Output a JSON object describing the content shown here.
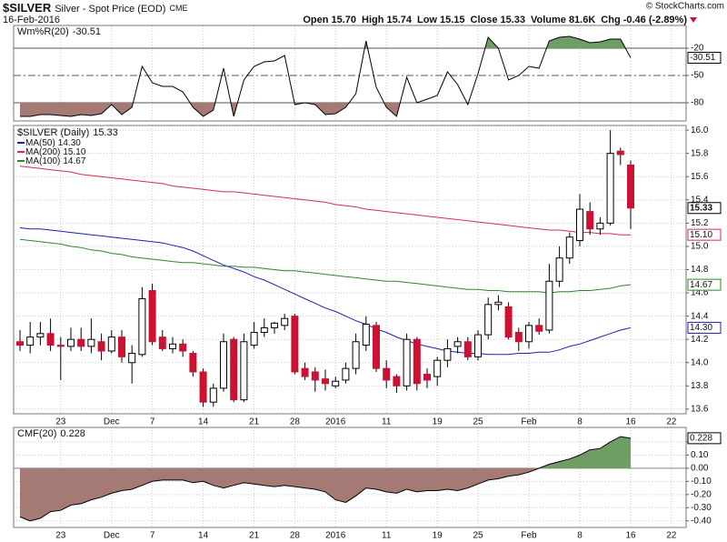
{
  "header": {
    "symbol": "$SILVER",
    "name": "Silver - Spot Price (EOD)",
    "exchange": "CME",
    "date": "16-Feb-2016",
    "quote": [
      {
        "label": "Open",
        "value": "15.70"
      },
      {
        "label": "High",
        "value": "15.74"
      },
      {
        "label": "Low",
        "value": "15.15"
      },
      {
        "label": "Close",
        "value": "15.33"
      },
      {
        "label": "Volume",
        "value": "81.6K"
      },
      {
        "label": "Chg",
        "value": "-0.46 (-2.89%)"
      }
    ],
    "credit": "© StockCharts.com"
  },
  "chart_data": [
    {
      "type": "line",
      "name": "Wm%R(20)",
      "color": "#000000",
      "fill_below": "#a57a74",
      "fill_above": "#6f9e64",
      "ylim": [
        -100,
        5
      ],
      "yticks": [
        -20,
        -50,
        -80
      ],
      "values": [
        -95,
        -95,
        -93,
        -93,
        -94,
        -95,
        -93,
        -94,
        -92,
        -82,
        -93,
        -85,
        -40,
        -58,
        -62,
        -62,
        -68,
        -85,
        -95,
        -88,
        -42,
        -95,
        -55,
        -40,
        -35,
        -34,
        -28,
        -82,
        -80,
        -82,
        -93,
        -92,
        -85,
        -70,
        -12,
        -63,
        -85,
        -95,
        -52,
        -80,
        -76,
        -72,
        -46,
        -60,
        -82,
        -48,
        -8,
        -20,
        -55,
        -50,
        -40,
        -42,
        -12,
        -8,
        -7,
        -10,
        -14,
        -13,
        -10,
        -10,
        -30.51,
        null,
        null,
        null,
        null
      ]
    },
    {
      "type": "candlestick",
      "grid": true,
      "ylim": [
        13.56,
        16.04
      ],
      "yticks": [
        13.6,
        13.8,
        {
          "value": 14.0,
          "label": "14.0"
        },
        14.2,
        14.4,
        14.6,
        14.8,
        {
          "value": 15.0,
          "label": "15.0"
        },
        15.2,
        15.4,
        15.6,
        15.8,
        {
          "value": 16.0,
          "label": "16.0"
        }
      ],
      "categories": [
        null,
        null,
        null,
        null,
        "23",
        null,
        null,
        null,
        null,
        "Dec",
        null,
        null,
        null,
        "7",
        null,
        null,
        null,
        null,
        "14",
        null,
        null,
        null,
        null,
        "21",
        null,
        null,
        null,
        "28",
        null,
        null,
        null,
        "2016",
        null,
        null,
        null,
        null,
        "11",
        null,
        null,
        null,
        null,
        "19",
        null,
        null,
        null,
        "25",
        null,
        null,
        null,
        null,
        "Feb",
        null,
        null,
        null,
        null,
        "8",
        null,
        null,
        null,
        null,
        "16",
        null,
        null,
        null,
        "22"
      ],
      "series": [
        {
          "name": "$SILVER (Daily)",
          "up_color": "#ffffff",
          "down_color": "#cc1133",
          "open": [
            14.18,
            14.15,
            14.22,
            14.25,
            14.15,
            14.14,
            14.2,
            14.14,
            14.18,
            14.1,
            14.22,
            14.0,
            14.07,
            14.62,
            14.22,
            14.12,
            14.16,
            14.08,
            13.92,
            13.66,
            13.78,
            14.2,
            13.68,
            14.15,
            14.26,
            14.3,
            14.32,
            14.4,
            13.95,
            13.92,
            13.86,
            13.8,
            13.85,
            13.95,
            14.15,
            14.32,
            13.95,
            13.88,
            13.8,
            14.2,
            13.9,
            13.88,
            14.02,
            14.14,
            14.18,
            14.05,
            14.24,
            14.5,
            14.48,
            14.26,
            14.18,
            14.32,
            14.28,
            14.7,
            14.9,
            15.05,
            15.3,
            15.15,
            15.2,
            15.82,
            15.7,
            null,
            null,
            null,
            null
          ],
          "high": [
            14.28,
            14.35,
            14.35,
            14.38,
            14.22,
            14.3,
            14.3,
            14.38,
            14.25,
            14.28,
            14.28,
            14.15,
            14.65,
            14.68,
            14.28,
            14.22,
            14.2,
            14.1,
            13.95,
            13.82,
            14.25,
            14.22,
            14.25,
            14.35,
            14.38,
            14.35,
            14.42,
            14.42,
            14.0,
            13.96,
            13.94,
            13.88,
            14.0,
            14.25,
            14.4,
            14.35,
            14.02,
            13.9,
            14.25,
            14.22,
            13.95,
            14.05,
            14.2,
            14.22,
            14.22,
            14.28,
            14.56,
            14.58,
            14.52,
            14.3,
            14.35,
            14.38,
            14.85,
            15.0,
            15.12,
            15.45,
            15.38,
            15.25,
            16.0,
            15.85,
            15.74,
            null,
            null,
            null,
            null
          ],
          "low": [
            14.1,
            14.08,
            14.15,
            14.1,
            13.85,
            14.1,
            14.1,
            14.08,
            14.02,
            14.08,
            14.0,
            13.82,
            14.05,
            14.15,
            14.1,
            14.08,
            14.05,
            13.88,
            13.62,
            13.62,
            13.75,
            13.66,
            13.66,
            14.12,
            14.22,
            14.25,
            14.28,
            13.9,
            13.85,
            13.75,
            13.76,
            13.78,
            13.82,
            13.9,
            14.1,
            13.92,
            13.78,
            13.74,
            13.76,
            13.76,
            13.78,
            13.8,
            13.96,
            14.08,
            14.02,
            14.02,
            14.2,
            14.45,
            14.2,
            14.1,
            14.12,
            14.24,
            14.25,
            14.65,
            14.85,
            15.0,
            15.1,
            15.1,
            15.18,
            15.7,
            15.15,
            null,
            null,
            null,
            null
          ],
          "close": [
            14.15,
            14.22,
            14.25,
            14.15,
            14.14,
            14.2,
            14.14,
            14.2,
            14.1,
            14.22,
            14.05,
            14.08,
            14.55,
            14.18,
            14.12,
            14.16,
            14.1,
            13.92,
            13.66,
            13.78,
            14.18,
            13.68,
            14.18,
            14.26,
            14.3,
            14.34,
            14.38,
            13.92,
            13.88,
            13.85,
            13.82,
            13.84,
            13.95,
            14.18,
            14.33,
            13.95,
            13.85,
            13.8,
            14.2,
            13.82,
            13.85,
            14.02,
            14.12,
            14.18,
            14.05,
            14.24,
            14.5,
            14.52,
            14.22,
            14.18,
            14.32,
            14.27,
            14.7,
            14.9,
            15.08,
            15.32,
            15.15,
            15.2,
            15.8,
            15.79,
            15.33,
            null,
            null,
            null,
            null
          ]
        }
      ],
      "moving_averages": [
        {
          "name": "MA(50)",
          "color": "#1f1fa8",
          "label": "14.30",
          "values": [
            15.16,
            15.15,
            15.15,
            15.14,
            15.13,
            15.12,
            15.11,
            15.1,
            15.09,
            15.08,
            15.07,
            15.06,
            15.05,
            15.04,
            15.03,
            15.01,
            14.99,
            14.96,
            14.92,
            14.88,
            14.84,
            14.81,
            14.78,
            14.74,
            14.71,
            14.67,
            14.63,
            14.59,
            14.55,
            14.51,
            14.47,
            14.44,
            14.4,
            14.36,
            14.33,
            14.29,
            14.26,
            14.22,
            14.19,
            14.16,
            14.14,
            14.12,
            14.1,
            14.09,
            14.08,
            14.08,
            14.07,
            14.07,
            14.07,
            14.08,
            14.08,
            14.09,
            14.09,
            14.11,
            14.14,
            14.16,
            14.19,
            14.22,
            14.25,
            14.28,
            14.3,
            null,
            null,
            null,
            null
          ]
        },
        {
          "name": "MA(200)",
          "color": "#d0304a",
          "label": "15.10",
          "values": [
            15.69,
            15.68,
            15.67,
            15.66,
            15.65,
            15.64,
            15.62,
            15.61,
            15.6,
            15.59,
            15.58,
            15.57,
            15.56,
            15.55,
            15.54,
            15.52,
            15.51,
            15.5,
            15.49,
            15.48,
            15.47,
            15.47,
            15.46,
            15.45,
            15.44,
            15.43,
            15.42,
            15.41,
            15.4,
            15.39,
            15.38,
            15.36,
            15.35,
            15.34,
            15.32,
            15.31,
            15.3,
            15.29,
            15.28,
            15.27,
            15.26,
            15.25,
            15.24,
            15.23,
            15.22,
            15.21,
            15.2,
            15.19,
            15.18,
            15.17,
            15.16,
            15.15,
            15.14,
            15.14,
            15.13,
            15.12,
            15.12,
            15.11,
            15.11,
            15.1,
            15.1,
            null,
            null,
            null,
            null
          ]
        },
        {
          "name": "MA(100)",
          "color": "#2e862e",
          "label": "14.67",
          "values": [
            15.06,
            15.05,
            15.04,
            15.03,
            15.02,
            15.0,
            14.99,
            14.97,
            14.96,
            14.94,
            14.93,
            14.91,
            14.9,
            14.89,
            14.88,
            14.87,
            14.86,
            14.86,
            14.85,
            14.84,
            14.83,
            14.83,
            14.82,
            14.82,
            14.81,
            14.8,
            14.79,
            14.79,
            14.78,
            14.77,
            14.76,
            14.75,
            14.74,
            14.73,
            14.72,
            14.71,
            14.7,
            14.7,
            14.69,
            14.68,
            14.67,
            14.66,
            14.65,
            14.64,
            14.63,
            14.63,
            14.62,
            14.62,
            14.61,
            14.61,
            14.61,
            14.61,
            14.6,
            14.61,
            14.61,
            14.62,
            14.62,
            14.63,
            14.64,
            14.66,
            14.67,
            null,
            null,
            null,
            null
          ]
        }
      ]
    },
    {
      "type": "area",
      "name": "CMF(20)",
      "color": "#000000",
      "fill_below": "#a57a74",
      "fill_above": "#6f9e64",
      "grid": true,
      "ylim": [
        -0.45,
        0.31
      ],
      "yticks": [
        {
          "value": 0.2,
          "label": "0.20"
        },
        {
          "value": 0.1,
          "label": "0.10"
        },
        {
          "value": 0,
          "label": "0.00"
        },
        {
          "value": -0.1,
          "label": "-0.10"
        },
        {
          "value": -0.2,
          "label": "-0.20"
        },
        {
          "value": -0.3,
          "label": "-0.30"
        },
        {
          "value": -0.4,
          "label": "-0.40"
        }
      ],
      "categories": [
        null,
        null,
        null,
        null,
        "23",
        null,
        null,
        null,
        null,
        "Dec",
        null,
        null,
        null,
        "7",
        null,
        null,
        null,
        null,
        "14",
        null,
        null,
        null,
        null,
        "21",
        null,
        null,
        null,
        "28",
        null,
        null,
        null,
        "2016",
        null,
        null,
        null,
        null,
        "11",
        null,
        null,
        null,
        null,
        "19",
        null,
        null,
        null,
        "25",
        null,
        null,
        null,
        null,
        "Feb",
        null,
        null,
        null,
        null,
        "8",
        null,
        null,
        null,
        null,
        "16",
        null,
        null,
        null,
        "22"
      ],
      "values": [
        -0.37,
        -0.4,
        -0.38,
        -0.33,
        -0.32,
        -0.28,
        -0.27,
        -0.24,
        -0.22,
        -0.19,
        -0.17,
        -0.16,
        -0.13,
        -0.1,
        -0.09,
        -0.09,
        -0.09,
        -0.11,
        -0.1,
        -0.13,
        -0.15,
        -0.13,
        -0.11,
        -0.12,
        -0.13,
        -0.14,
        -0.13,
        -0.14,
        -0.15,
        -0.16,
        -0.18,
        -0.24,
        -0.26,
        -0.21,
        -0.15,
        -0.16,
        -0.18,
        -0.19,
        -0.16,
        -0.18,
        -0.17,
        -0.17,
        -0.16,
        -0.17,
        -0.15,
        -0.12,
        -0.09,
        -0.08,
        -0.06,
        -0.05,
        -0.03,
        0,
        0.03,
        0.05,
        0.07,
        0.1,
        0.14,
        0.15,
        0.2,
        0.24,
        0.228,
        null,
        null,
        null,
        null
      ]
    }
  ]
}
